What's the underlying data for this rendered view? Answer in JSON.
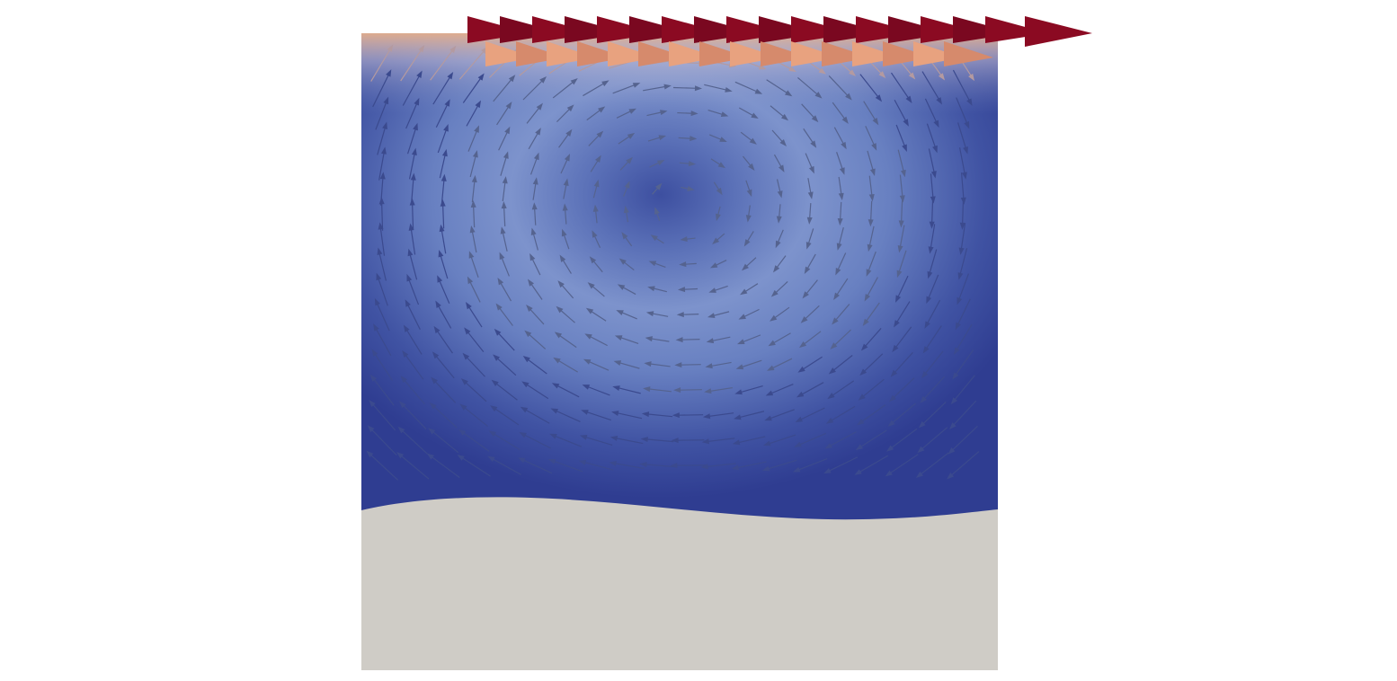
{
  "scene": {
    "description_type": "cavity-flow-visualization",
    "colors": {
      "background": "#ffffff",
      "fluid_low": "#2f3d91",
      "fluid_mid": "#6f86c6",
      "fluid_high": "#b8c6e6",
      "solid_region": "#cfccc6",
      "arrow_low": "#8ea3cf",
      "arrow_warm": "#e8a27f",
      "arrow_hot": "#8b0a22"
    },
    "glyphs": {
      "flow_direction": "clockwise-vortex",
      "top_lid_direction": "right"
    }
  }
}
